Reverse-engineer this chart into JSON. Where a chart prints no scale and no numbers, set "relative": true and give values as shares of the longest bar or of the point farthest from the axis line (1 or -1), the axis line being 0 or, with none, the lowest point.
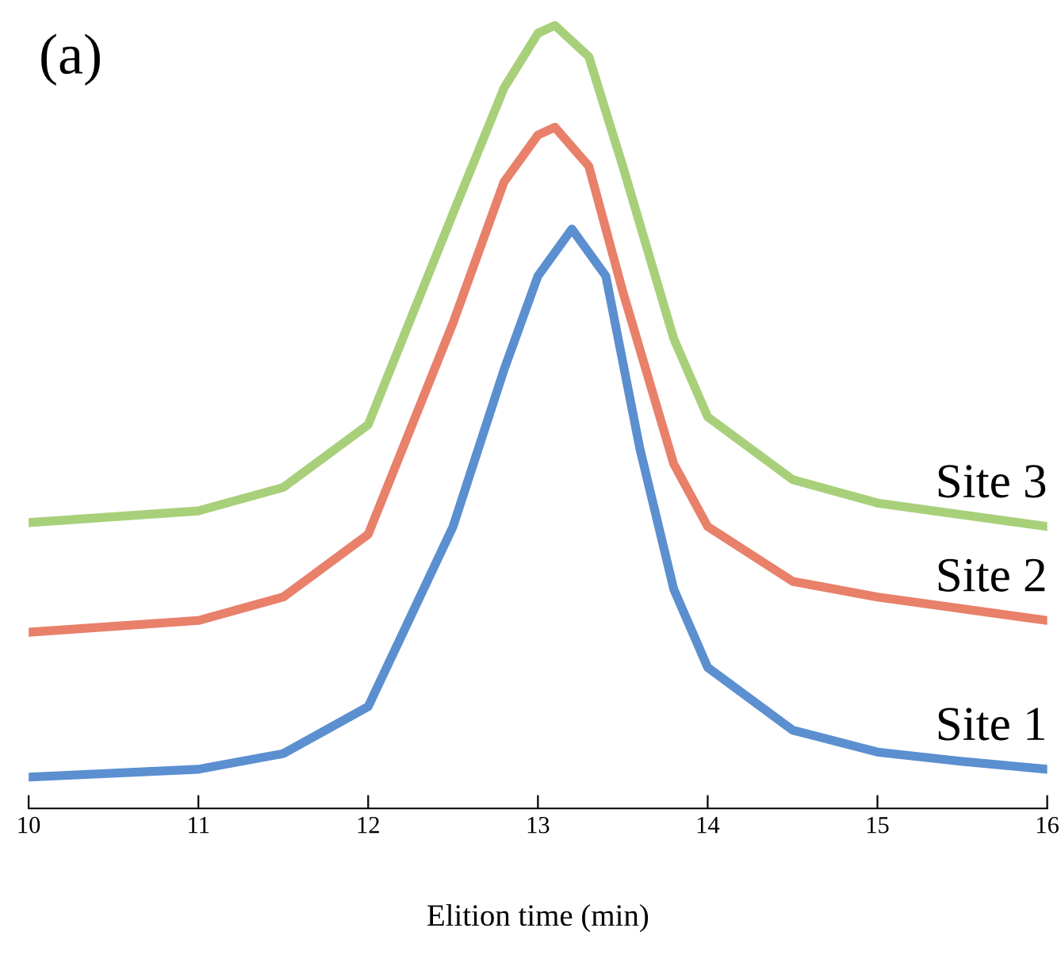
{
  "chart_data": {
    "type": "line",
    "relative": true,
    "xlabel": "Elition time (min)",
    "annotations": [
      "(a)"
    ],
    "xlim": [
      10,
      16
    ],
    "xticks": [
      10,
      11,
      12,
      13,
      14,
      15,
      16
    ],
    "grid": false,
    "legend": false,
    "marker": "none",
    "line_style": "solid",
    "series": [
      {
        "name": "Site 1",
        "color": "#5b8fd0",
        "x": [
          10,
          11,
          11.5,
          12,
          12.5,
          12.8,
          13,
          13.2,
          13.4,
          13.6,
          13.8,
          14,
          14.5,
          15,
          15.5,
          16
        ],
        "values": [
          0.04,
          0.05,
          0.07,
          0.13,
          0.36,
          0.56,
          0.68,
          0.74,
          0.68,
          0.46,
          0.28,
          0.18,
          0.1,
          0.072,
          0.06,
          0.05
        ]
      },
      {
        "name": "Site 2",
        "color": "#e8806a",
        "x": [
          10,
          11,
          11.5,
          12,
          12.5,
          12.8,
          13,
          13.1,
          13.3,
          13.5,
          13.8,
          14,
          14.5,
          15,
          16
        ],
        "values": [
          0.225,
          0.24,
          0.27,
          0.35,
          0.62,
          0.8,
          0.86,
          0.87,
          0.82,
          0.66,
          0.44,
          0.36,
          0.29,
          0.27,
          0.24
        ]
      },
      {
        "name": "Site 3",
        "color": "#a8d07a",
        "x": [
          10,
          11,
          11.5,
          12,
          12.5,
          12.8,
          13,
          13.1,
          13.3,
          13.5,
          13.8,
          14,
          14.5,
          15,
          16
        ],
        "values": [
          0.365,
          0.38,
          0.41,
          0.49,
          0.76,
          0.92,
          0.99,
          1.0,
          0.96,
          0.82,
          0.6,
          0.5,
          0.42,
          0.39,
          0.36
        ]
      }
    ]
  }
}
